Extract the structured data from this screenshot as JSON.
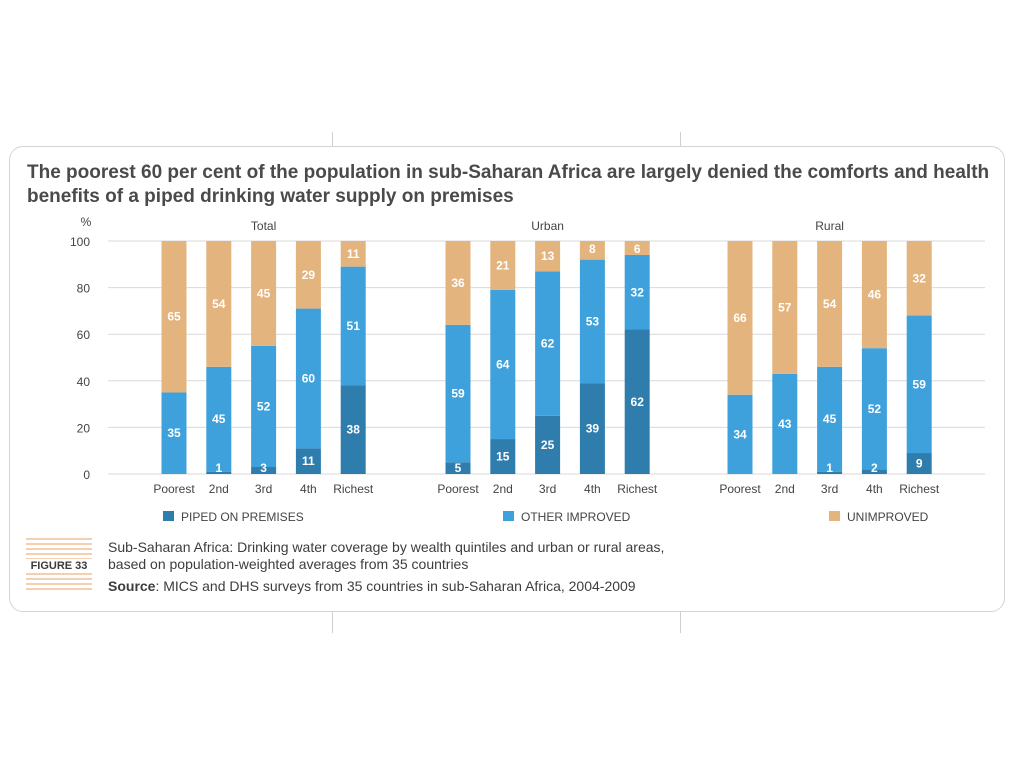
{
  "title": "The poorest 60 per cent of the population in sub-Saharan Africa are largely denied the comforts and health benefits of a piped drinking water supply on premises",
  "figure_label": "FIGURE 33",
  "caption": "Sub-Saharan Africa: Drinking water coverage by wealth quintiles and urban or rural areas, based on population-weighted averages from 35 countries",
  "source_label": "Source",
  "source_text": ": MICS and DHS surveys from 35 countries in sub-Saharan Africa, 2004-2009",
  "colors": {
    "piped": "#2e7dad",
    "other": "#3fa1dc",
    "unimproved": "#e3b47d",
    "grid": "#d9d9d9",
    "figure_lines": "#e6a061"
  },
  "chart_data": {
    "type": "bar",
    "stacked": true,
    "ylabel": "%",
    "ylim": [
      0,
      100
    ],
    "yticks": [
      0,
      20,
      40,
      60,
      80,
      100
    ],
    "grid": true,
    "legend_position": "bottom",
    "categories": [
      "Poorest",
      "2nd",
      "3rd",
      "4th",
      "Richest"
    ],
    "legend": [
      {
        "key": "piped",
        "label": "PIPED ON PREMISES"
      },
      {
        "key": "other",
        "label": "OTHER IMPROVED"
      },
      {
        "key": "unimproved",
        "label": "UNIMPROVED"
      }
    ],
    "groups": [
      {
        "name": "Total",
        "piped": [
          0,
          1,
          3,
          11,
          38
        ],
        "other": [
          35,
          45,
          52,
          60,
          51
        ],
        "unimproved": [
          65,
          54,
          45,
          29,
          11
        ],
        "piped_labels": [
          "",
          "1",
          "3",
          "11",
          "38"
        ]
      },
      {
        "name": "Urban",
        "piped": [
          5,
          15,
          25,
          39,
          62
        ],
        "other": [
          59,
          64,
          62,
          53,
          32
        ],
        "unimproved": [
          36,
          21,
          13,
          8,
          6
        ],
        "piped_labels": [
          "5",
          "15",
          "25",
          "39",
          "62"
        ]
      },
      {
        "name": "Rural",
        "piped": [
          0,
          0,
          1,
          2,
          9
        ],
        "other": [
          34,
          43,
          45,
          52,
          59
        ],
        "unimproved": [
          66,
          57,
          54,
          46,
          32
        ],
        "piped_labels": [
          "",
          "",
          "1",
          "2",
          "9"
        ]
      }
    ]
  }
}
